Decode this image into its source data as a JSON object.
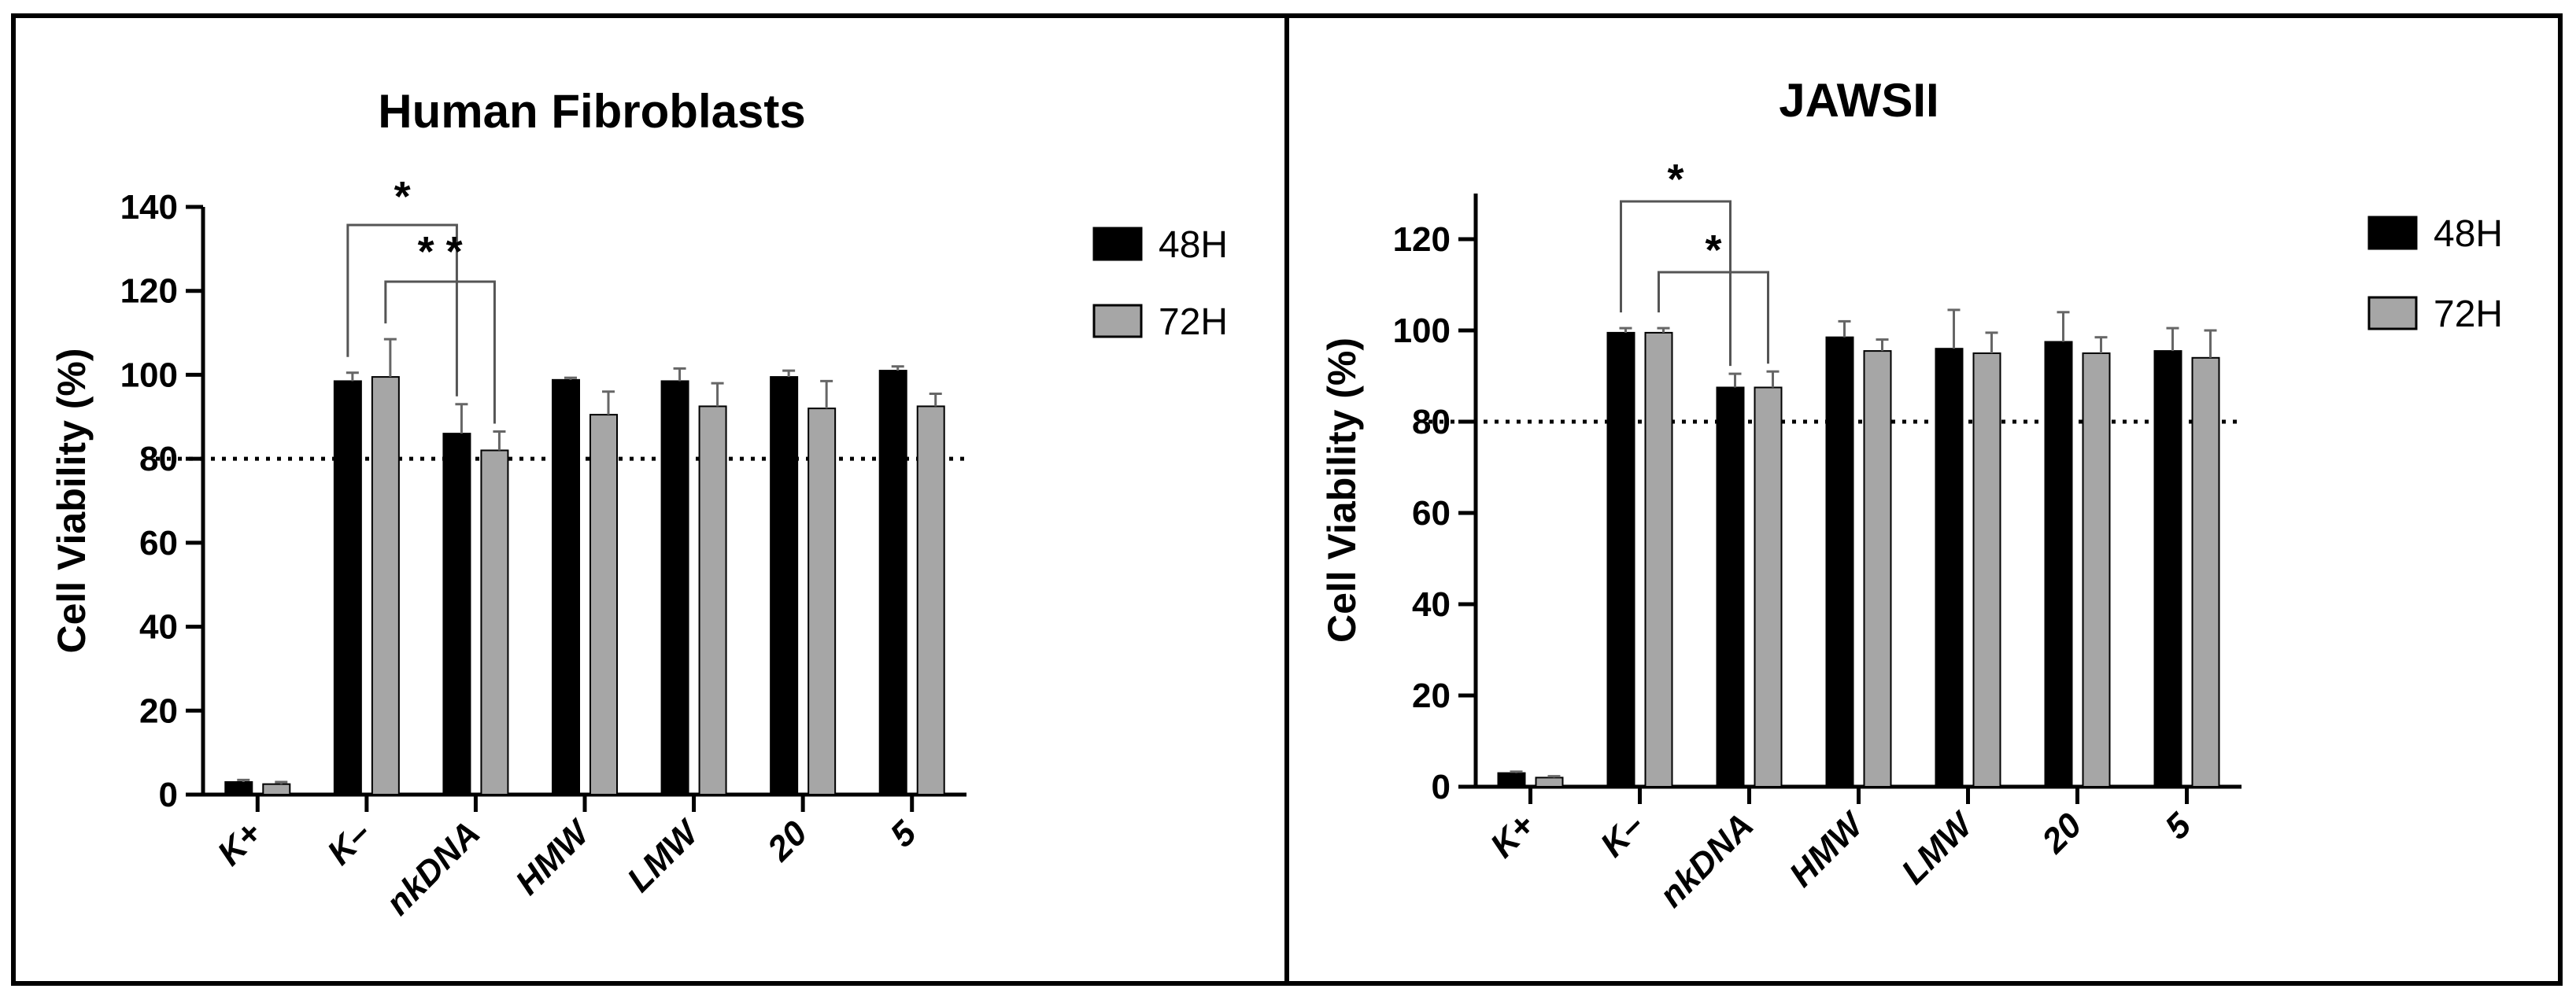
{
  "colors": {
    "series_48h": "#000000",
    "series_72h": "#a6a6a6",
    "threshold": "#000000"
  },
  "chart_data": [
    {
      "type": "bar",
      "title": "Human Fibroblasts",
      "xlabel": "",
      "ylabel": "Cell Viability (%)",
      "ylim": [
        0,
        140
      ],
      "yticks": [
        0,
        20,
        40,
        60,
        80,
        100,
        120,
        140
      ],
      "categories": [
        "K+",
        "K–",
        "nkDNA",
        "HMW",
        "LMW",
        "20",
        "5"
      ],
      "series": [
        {
          "name": "48H",
          "values": [
            3,
            98.5,
            86,
            98.8,
            98.5,
            99.5,
            101
          ],
          "errors": [
            0.5,
            2,
            7,
            0.5,
            3,
            1.5,
            1
          ]
        },
        {
          "name": "72H",
          "values": [
            2.5,
            99.5,
            82,
            90.5,
            92.5,
            92,
            92.5
          ],
          "errors": [
            0.5,
            9,
            4.5,
            5.5,
            5.5,
            6.5,
            3
          ]
        }
      ],
      "threshold_line": 80,
      "legend_position": "top-right",
      "significance": [
        {
          "from_category": "K–",
          "from_series": "48H",
          "to_category": "nkDNA",
          "to_series": "48H",
          "label": "*"
        },
        {
          "from_category": "K–",
          "from_series": "72H",
          "to_category": "nkDNA",
          "to_series": "72H",
          "label": "* *"
        }
      ]
    },
    {
      "type": "bar",
      "title": "JAWSII",
      "xlabel": "",
      "ylabel": "Cell Viability (%)",
      "ylim": [
        0,
        130
      ],
      "yticks": [
        0,
        20,
        40,
        60,
        80,
        100,
        120
      ],
      "categories": [
        "K+",
        "K–",
        "nkDNA",
        "HMW",
        "LMW",
        "20",
        "5"
      ],
      "series": [
        {
          "name": "48H",
          "values": [
            3,
            99.5,
            87.5,
            98.5,
            96,
            97.5,
            95.5
          ],
          "errors": [
            0.3,
            1,
            3,
            3.5,
            8.5,
            6.5,
            5
          ]
        },
        {
          "name": "72H",
          "values": [
            2,
            99.5,
            87.5,
            95.5,
            95,
            95,
            94
          ],
          "errors": [
            0.3,
            1,
            3.5,
            2.5,
            4.5,
            3.5,
            6
          ]
        }
      ],
      "threshold_line": 80,
      "legend_position": "top-right",
      "significance": [
        {
          "from_category": "K–",
          "from_series": "48H",
          "to_category": "nkDNA",
          "to_series": "48H",
          "label": "*"
        },
        {
          "from_category": "K–",
          "from_series": "72H",
          "to_category": "nkDNA",
          "to_series": "72H",
          "label": "*"
        }
      ]
    }
  ]
}
